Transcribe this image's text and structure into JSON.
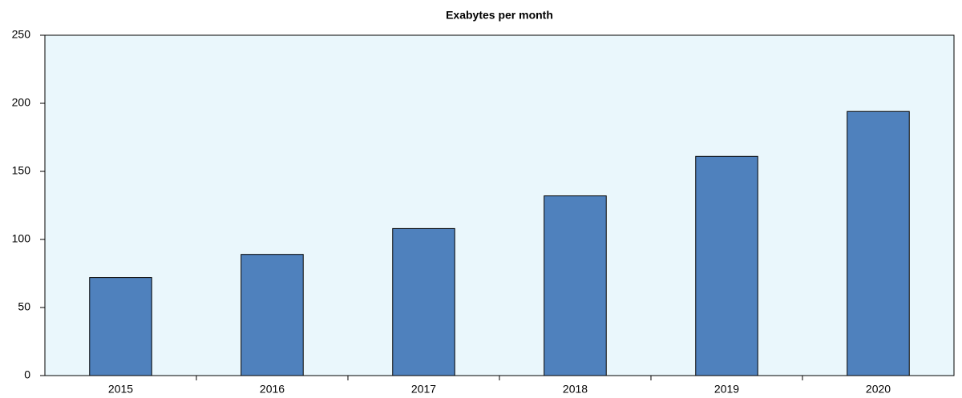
{
  "chart_data": {
    "type": "bar",
    "title": "Exabytes per month",
    "categories": [
      "2015",
      "2016",
      "2017",
      "2018",
      "2019",
      "2020"
    ],
    "values": [
      72,
      89,
      108,
      132,
      161,
      194
    ],
    "color": "#4f81bd",
    "ylim": [
      0,
      250
    ],
    "yticks": [
      0,
      50,
      100,
      150,
      200,
      250
    ],
    "grid": false
  }
}
